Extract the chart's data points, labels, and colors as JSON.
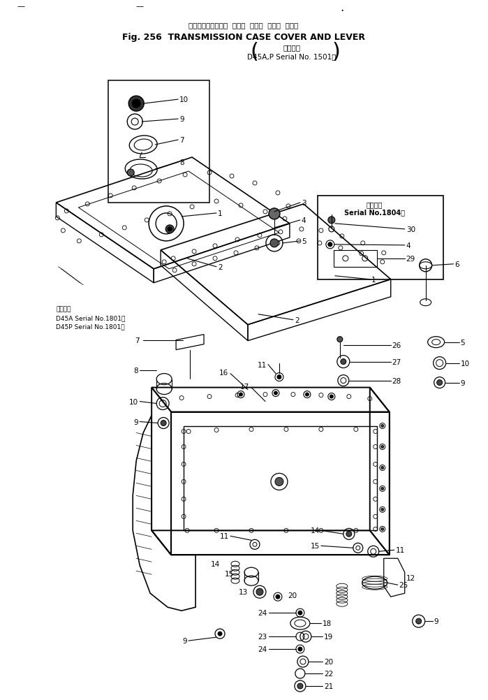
{
  "title_jp": "トランスミッション  ケース  カバー  および  レバー",
  "title_en": "Fig. 256  TRANSMISSION CASE COVER AND LEVER",
  "subtitle_jp": "適用号機",
  "subtitle_model": "D45A,P Serial No. 1501～",
  "note1_jp": "適用号機",
  "note1_model1": "D45A Serial No.1801～",
  "note1_model2": "D45P Serial No.1801～",
  "note2_line1": "適用号機",
  "note2_line2": "Serial No.1804～",
  "bg_color": "#ffffff",
  "line_color": "#000000",
  "fig_width": 6.99,
  "fig_height": 10.03
}
